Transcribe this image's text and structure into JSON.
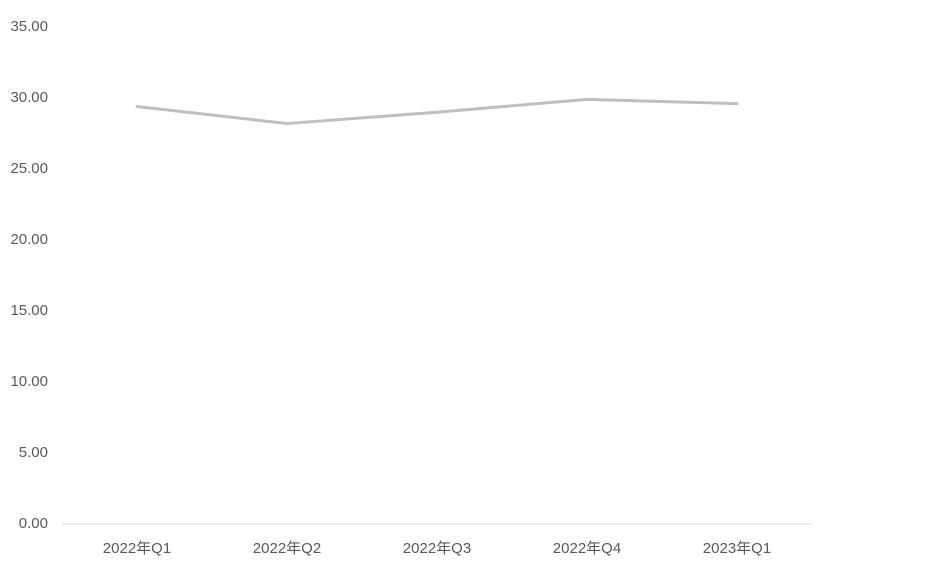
{
  "chart_data": {
    "type": "line",
    "categories": [
      "2022年Q1",
      "2022年Q2",
      "2022年Q3",
      "2022年Q4",
      "2023年Q1"
    ],
    "series": [
      {
        "color": "#bfbfbf",
        "values": [
          29.4,
          28.2,
          29.0,
          29.9,
          29.6
        ]
      }
    ],
    "ylim": [
      0,
      35
    ],
    "yticks": [
      {
        "value": 0,
        "label": "0.00"
      },
      {
        "value": 5,
        "label": "5.00"
      },
      {
        "value": 10,
        "label": "10.00"
      },
      {
        "value": 15,
        "label": "15.00"
      },
      {
        "value": 20,
        "label": "20.00"
      },
      {
        "value": 25,
        "label": "25.00"
      },
      {
        "value": 30,
        "label": "30.00"
      },
      {
        "value": 35,
        "label": "35.00"
      }
    ],
    "grid": false
  }
}
